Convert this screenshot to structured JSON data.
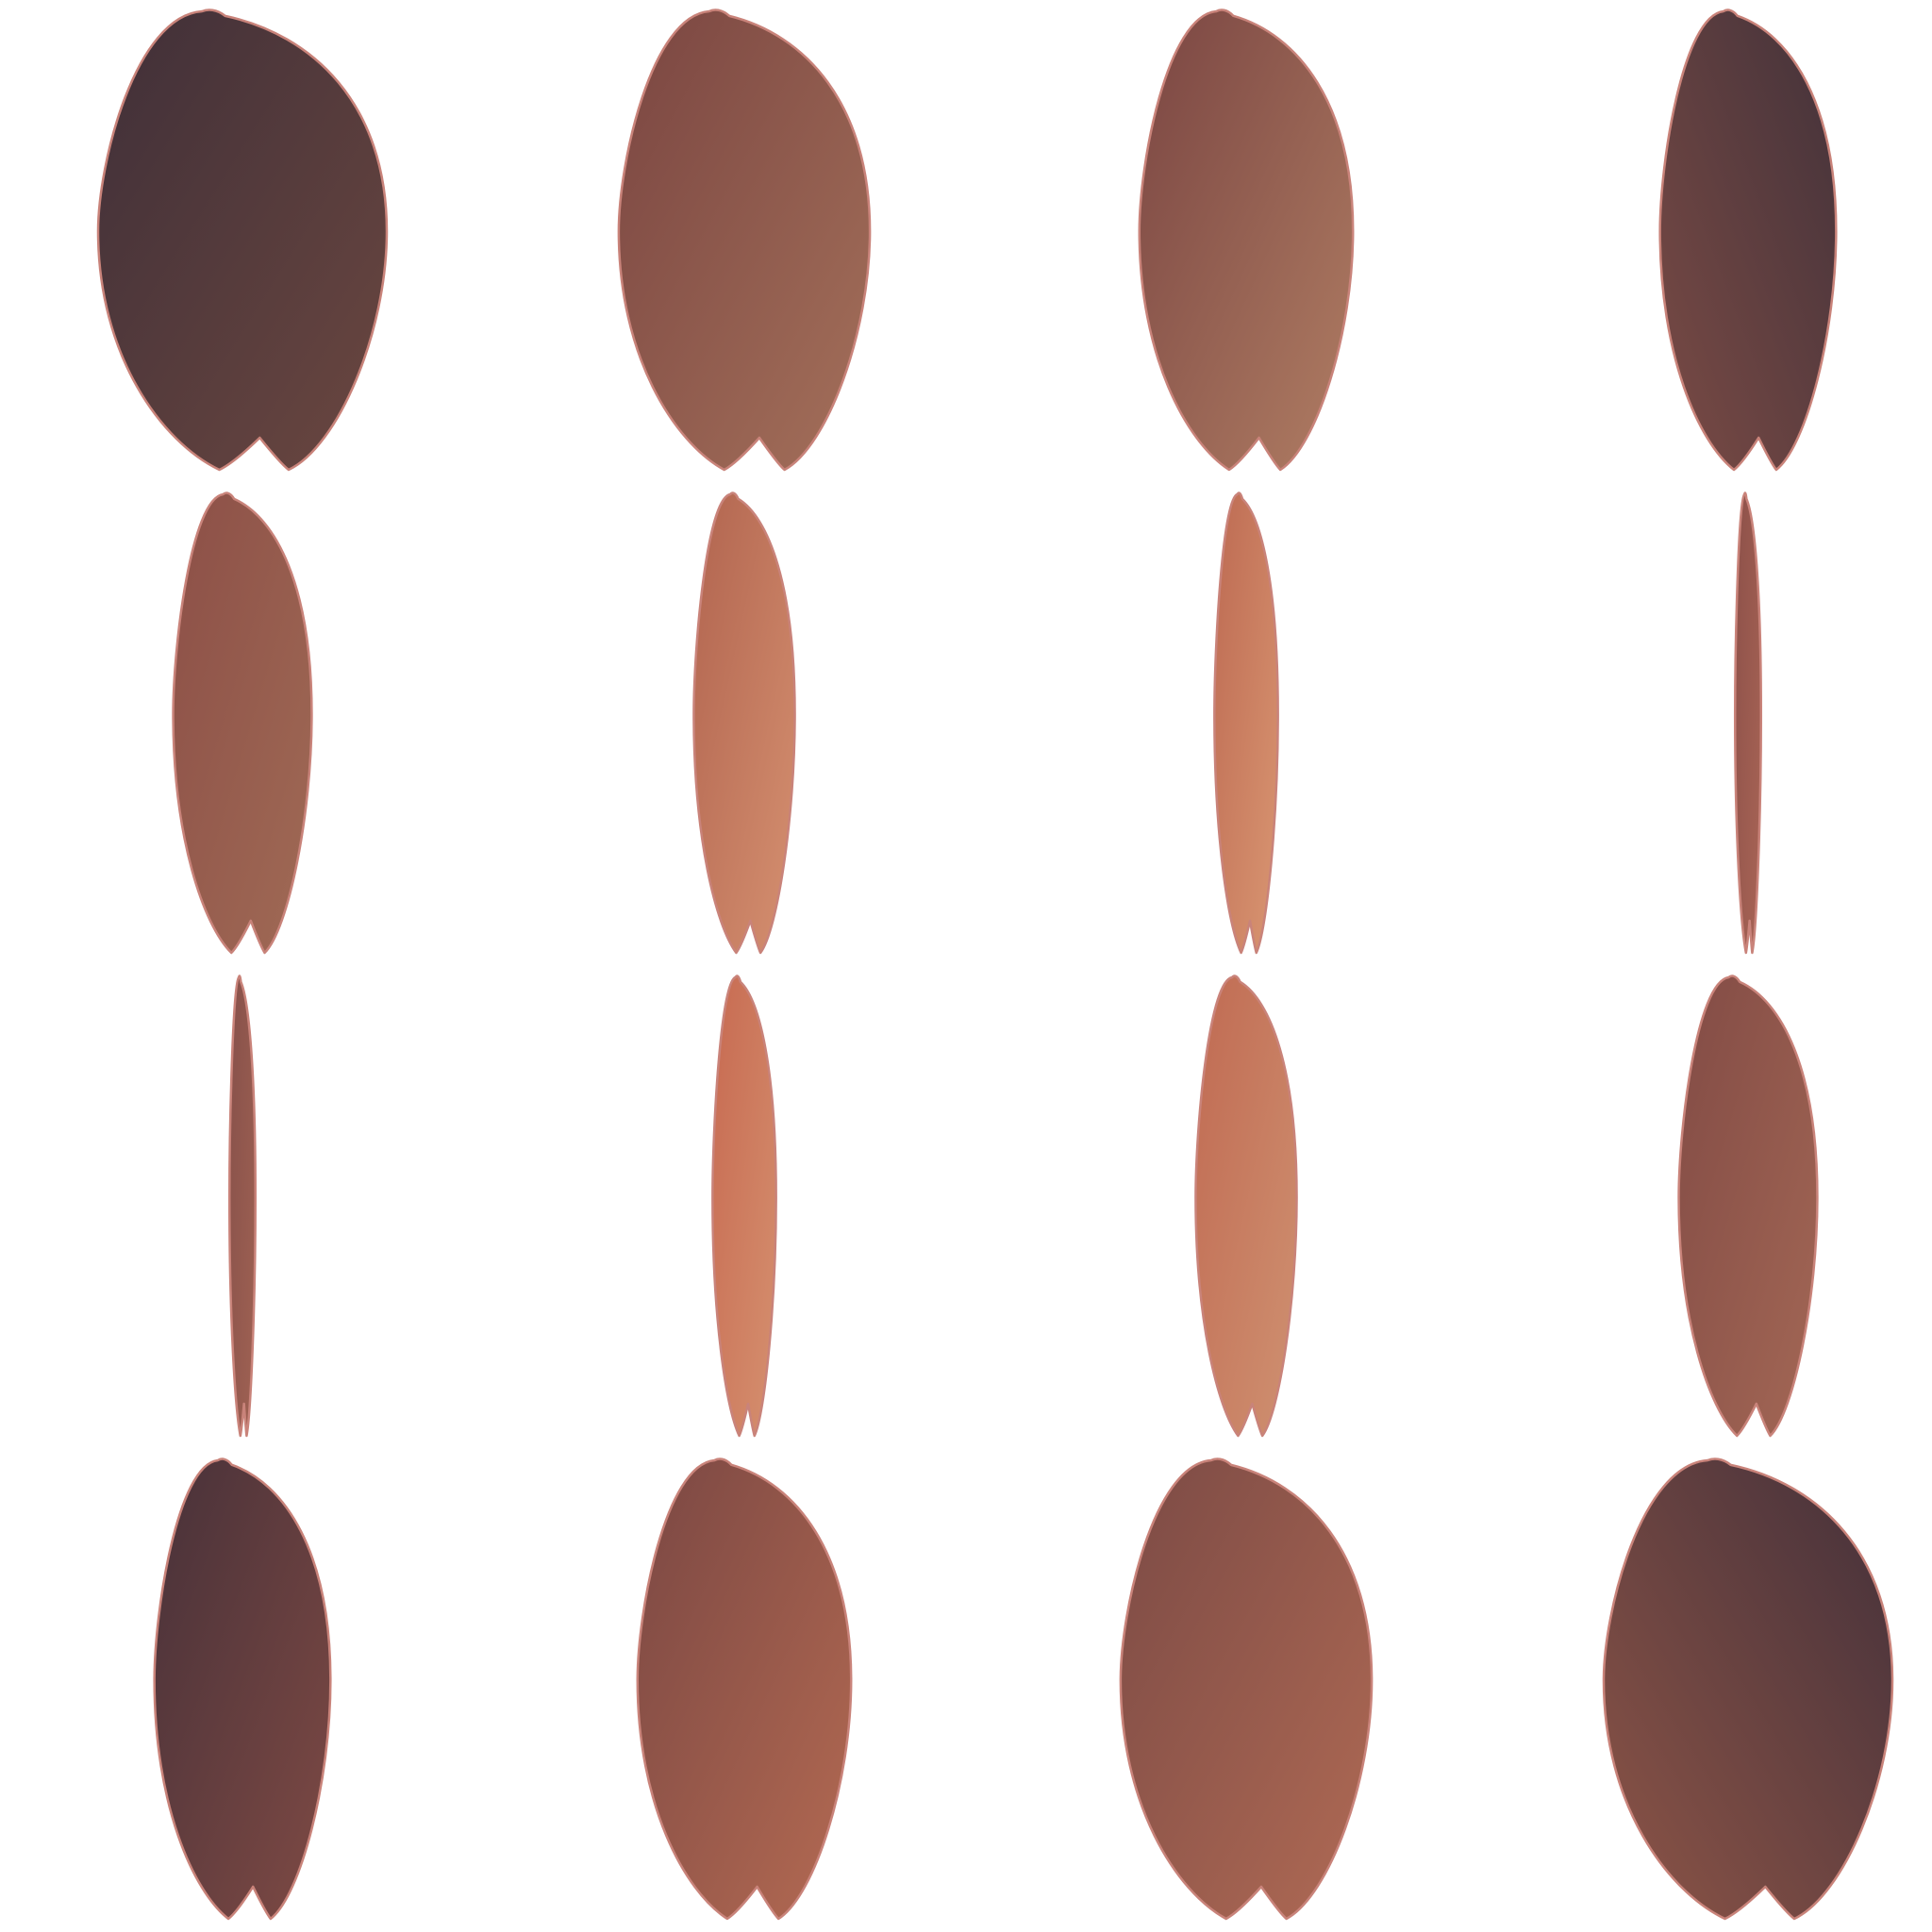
{
  "scene": {
    "description_free": true,
    "background_color": "#ffffff",
    "outline_color": "#c9837a",
    "rows": 4,
    "columns": 4
  },
  "palette": {
    "dark": "#43303a",
    "mid_dark": "#6e4340",
    "mid": "#9a5a4a",
    "warm": "#b8694f",
    "light": "#d98a67",
    "highlight": "#d99f7e"
  },
  "petals": [
    {
      "row": 0,
      "col": 0,
      "width_factor": 1.0,
      "light": "#6b4740",
      "dark": "#3f2f38",
      "shadow_side": "left"
    },
    {
      "row": 0,
      "col": 1,
      "width_factor": 0.87,
      "light": "#a4705a",
      "dark": "#7a4541",
      "shadow_side": "left"
    },
    {
      "row": 0,
      "col": 2,
      "width_factor": 0.74,
      "light": "#b07d63",
      "dark": "#7a4542",
      "shadow_side": "left"
    },
    {
      "row": 0,
      "col": 3,
      "width_factor": 0.61,
      "light": "#7b4b45",
      "dark": "#43323a",
      "shadow_side": "right"
    },
    {
      "row": 1,
      "col": 0,
      "width_factor": 0.48,
      "light": "#a06a55",
      "dark": "#8c4f47",
      "shadow_side": "left"
    },
    {
      "row": 1,
      "col": 1,
      "width_factor": 0.35,
      "light": "#d59070",
      "dark": "#b1644f",
      "shadow_side": "left"
    },
    {
      "row": 1,
      "col": 2,
      "width_factor": 0.22,
      "light": "#d99672",
      "dark": "#bd6a52",
      "shadow_side": "left"
    },
    {
      "row": 1,
      "col": 3,
      "width_factor": 0.09,
      "light": "#a96556",
      "dark": "#8c5049",
      "shadow_side": "left"
    },
    {
      "row": 2,
      "col": 0,
      "width_factor": 0.09,
      "light": "#a06253",
      "dark": "#86504a",
      "shadow_side": "left"
    },
    {
      "row": 2,
      "col": 1,
      "width_factor": 0.22,
      "light": "#d5906f",
      "dark": "#c76a51",
      "shadow_side": "left"
    },
    {
      "row": 2,
      "col": 2,
      "width_factor": 0.35,
      "light": "#cf9171",
      "dark": "#c06a52",
      "shadow_side": "left"
    },
    {
      "row": 2,
      "col": 3,
      "width_factor": 0.48,
      "light": "#a36755",
      "dark": "#824b45",
      "shadow_side": "left"
    },
    {
      "row": 3,
      "col": 0,
      "width_factor": 0.61,
      "light": "#7f4a44",
      "dark": "#473139",
      "shadow_side": "left"
    },
    {
      "row": 3,
      "col": 1,
      "width_factor": 0.74,
      "light": "#b46a52",
      "dark": "#7a4743",
      "shadow_side": "left"
    },
    {
      "row": 3,
      "col": 2,
      "width_factor": 0.87,
      "light": "#b06a54",
      "dark": "#7b4a45",
      "shadow_side": "left"
    },
    {
      "row": 3,
      "col": 3,
      "width_factor": 1.0,
      "light": "#8e5547",
      "dark": "#43303a",
      "shadow_side": "right"
    }
  ]
}
